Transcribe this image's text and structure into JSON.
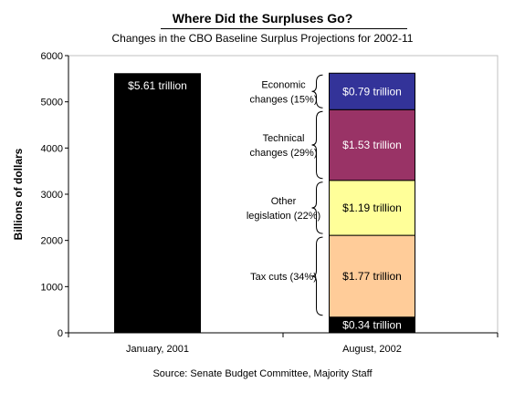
{
  "chart_data": {
    "type": "bar",
    "title": "Where Did the Surpluses Go?",
    "subtitle": "Changes in the CBO Baseline Surplus Projections for 2002-11",
    "ylabel": "Billions of dollars",
    "xlabel": "",
    "source": "Source: Senate Budget Committee, Majority Staff",
    "ylim": [
      0,
      6000
    ],
    "yticks": [
      0,
      1000,
      2000,
      3000,
      4000,
      5000,
      6000
    ],
    "grid": false,
    "categories": [
      "January, 2001",
      "August, 2002"
    ],
    "bars": [
      {
        "category": "January, 2001",
        "segments": [
          {
            "value": 5610,
            "label": "$5.61 trillion",
            "color": "#000000",
            "text_color": "#ffffff"
          }
        ]
      },
      {
        "category": "August, 2002",
        "segments": [
          {
            "value": 340,
            "label": "$0.34 trillion",
            "color": "#000000",
            "text_color": "#ffffff"
          },
          {
            "value": 1770,
            "label": "$1.77 trillion",
            "color": "#FFCC99",
            "text_color": "#000000"
          },
          {
            "value": 1190,
            "label": "$1.19 trillion",
            "color": "#FFFF99",
            "text_color": "#000000"
          },
          {
            "value": 1530,
            "label": "$1.53 trillion",
            "color": "#993366",
            "text_color": "#ffffff"
          },
          {
            "value": 790,
            "label": "$0.79 trillion",
            "color": "#333399",
            "text_color": "#ffffff"
          }
        ]
      }
    ],
    "annotations": [
      {
        "segment_index": 1,
        "lines": [
          "Tax cuts (34%)"
        ]
      },
      {
        "segment_index": 2,
        "lines": [
          "Other",
          "legislation (22%)"
        ]
      },
      {
        "segment_index": 3,
        "lines": [
          "Technical",
          "changes (29%)"
        ]
      },
      {
        "segment_index": 4,
        "lines": [
          "Economic",
          "changes (15%)"
        ]
      }
    ]
  }
}
